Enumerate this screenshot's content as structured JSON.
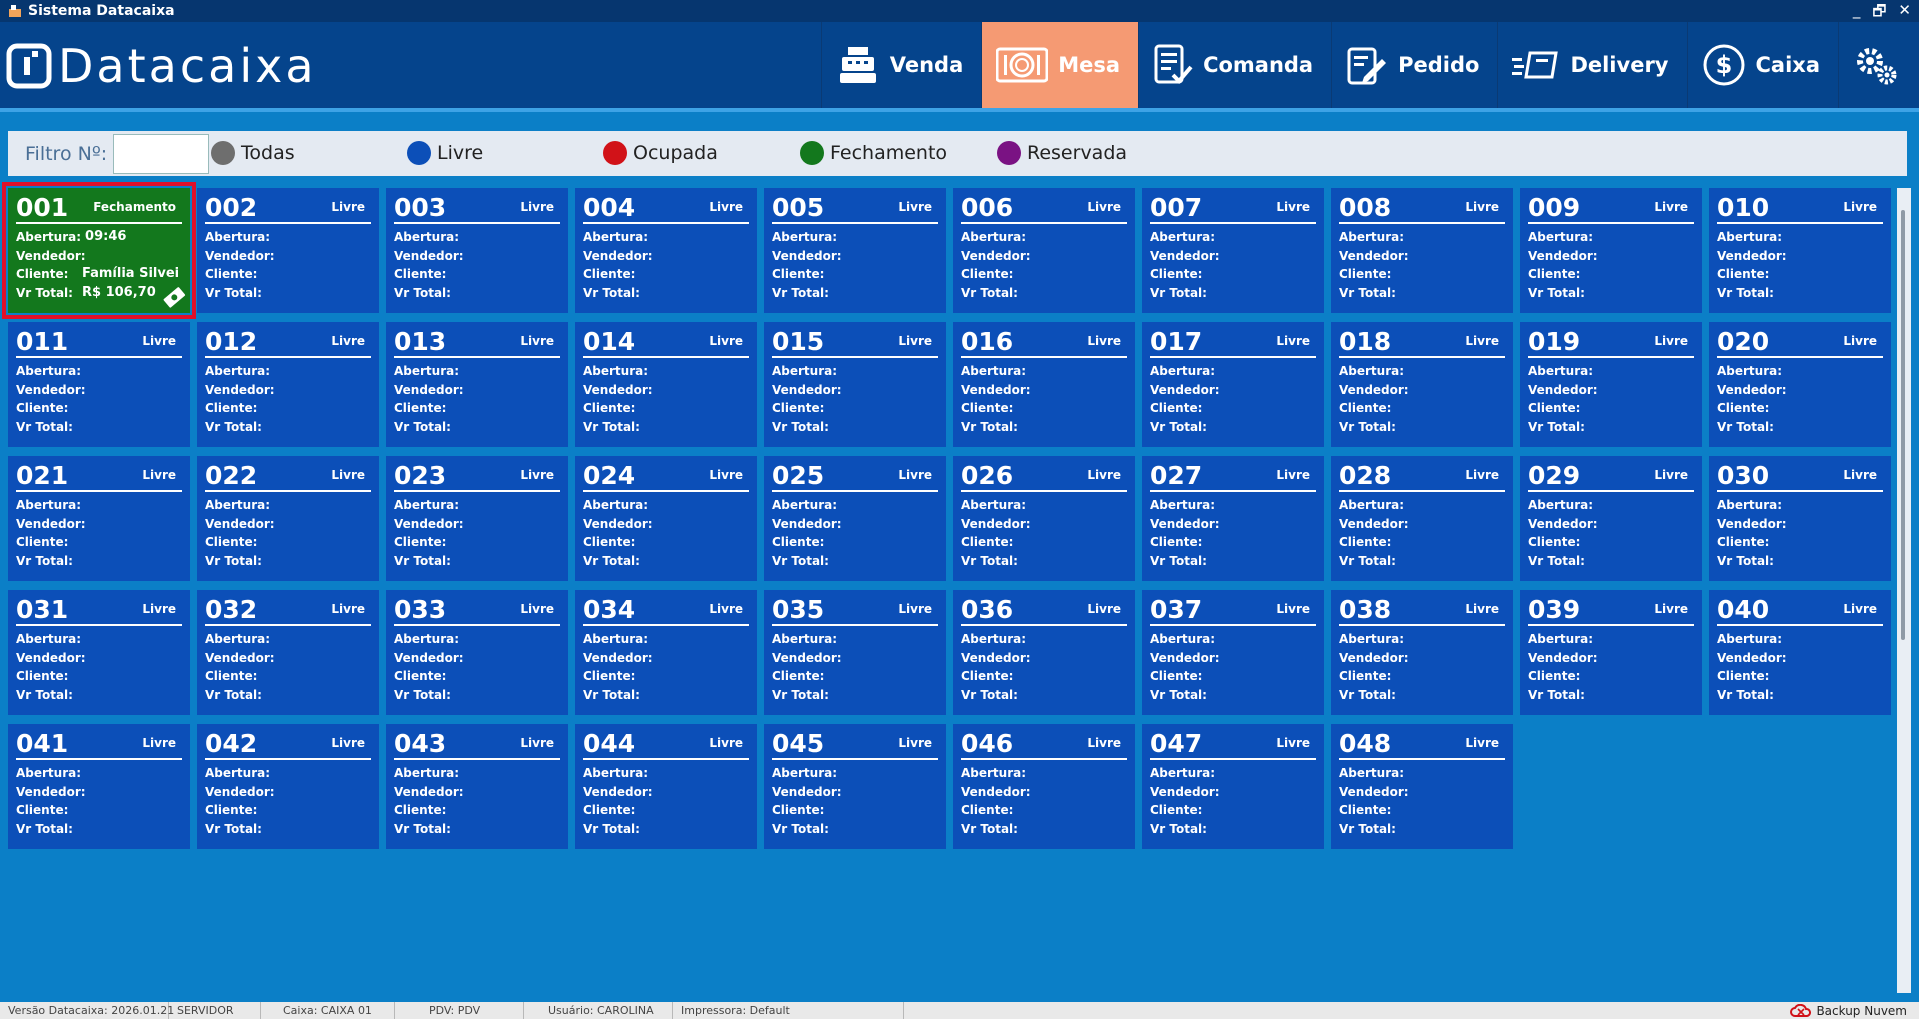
{
  "window": {
    "title": "Sistema Datacaixa",
    "controls": [
      "_",
      "🗗",
      "✕"
    ]
  },
  "brand": {
    "name": "Datacaixa"
  },
  "nav": [
    {
      "label": "Venda",
      "icon": "cash-register-icon",
      "active": false
    },
    {
      "label": "Mesa",
      "icon": "plate-icon",
      "active": true
    },
    {
      "label": "Comanda",
      "icon": "checklist-icon",
      "active": false
    },
    {
      "label": "Pedido",
      "icon": "order-edit-icon",
      "active": false
    },
    {
      "label": "Delivery",
      "icon": "delivery-icon",
      "active": false
    },
    {
      "label": "Caixa",
      "icon": "dollar-circle-icon",
      "active": false
    }
  ],
  "filter": {
    "label": "Filtro Nº:",
    "value": "",
    "legend": [
      {
        "label": "Todas",
        "color": "#6e6e6e"
      },
      {
        "label": "Livre",
        "color": "#0c4fb8"
      },
      {
        "label": "Ocupada",
        "color": "#d11218"
      },
      {
        "label": "Fechamento",
        "color": "#13781d"
      },
      {
        "label": "Reservada",
        "color": "#7a1283"
      }
    ]
  },
  "field_labels": {
    "abertura": "Abertura:",
    "vendedor": "Vendedor:",
    "cliente": "Cliente:",
    "total": "Vr Total:"
  },
  "mesas": [
    {
      "num": "001",
      "status": "Fechamento",
      "abertura": "09:46",
      "vendedor": "",
      "cliente": "Família Silveira",
      "total": "R$ 106,70"
    },
    {
      "num": "002",
      "status": "Livre"
    },
    {
      "num": "003",
      "status": "Livre"
    },
    {
      "num": "004",
      "status": "Livre"
    },
    {
      "num": "005",
      "status": "Livre"
    },
    {
      "num": "006",
      "status": "Livre"
    },
    {
      "num": "007",
      "status": "Livre"
    },
    {
      "num": "008",
      "status": "Livre"
    },
    {
      "num": "009",
      "status": "Livre"
    },
    {
      "num": "010",
      "status": "Livre"
    },
    {
      "num": "011",
      "status": "Livre"
    },
    {
      "num": "012",
      "status": "Livre"
    },
    {
      "num": "013",
      "status": "Livre"
    },
    {
      "num": "014",
      "status": "Livre"
    },
    {
      "num": "015",
      "status": "Livre"
    },
    {
      "num": "016",
      "status": "Livre"
    },
    {
      "num": "017",
      "status": "Livre"
    },
    {
      "num": "018",
      "status": "Livre"
    },
    {
      "num": "019",
      "status": "Livre"
    },
    {
      "num": "020",
      "status": "Livre"
    },
    {
      "num": "021",
      "status": "Livre"
    },
    {
      "num": "022",
      "status": "Livre"
    },
    {
      "num": "023",
      "status": "Livre"
    },
    {
      "num": "024",
      "status": "Livre"
    },
    {
      "num": "025",
      "status": "Livre"
    },
    {
      "num": "026",
      "status": "Livre"
    },
    {
      "num": "027",
      "status": "Livre"
    },
    {
      "num": "028",
      "status": "Livre"
    },
    {
      "num": "029",
      "status": "Livre"
    },
    {
      "num": "030",
      "status": "Livre"
    },
    {
      "num": "031",
      "status": "Livre"
    },
    {
      "num": "032",
      "status": "Livre"
    },
    {
      "num": "033",
      "status": "Livre"
    },
    {
      "num": "034",
      "status": "Livre"
    },
    {
      "num": "035",
      "status": "Livre"
    },
    {
      "num": "036",
      "status": "Livre"
    },
    {
      "num": "037",
      "status": "Livre"
    },
    {
      "num": "038",
      "status": "Livre"
    },
    {
      "num": "039",
      "status": "Livre"
    },
    {
      "num": "040",
      "status": "Livre"
    },
    {
      "num": "041",
      "status": "Livre"
    },
    {
      "num": "042",
      "status": "Livre"
    },
    {
      "num": "043",
      "status": "Livre"
    },
    {
      "num": "044",
      "status": "Livre"
    },
    {
      "num": "045",
      "status": "Livre"
    },
    {
      "num": "046",
      "status": "Livre"
    },
    {
      "num": "047",
      "status": "Livre"
    },
    {
      "num": "048",
      "status": "Livre"
    }
  ],
  "status": {
    "versao": "Versão Datacaixa: 2026.01.21",
    "servidor": "SERVIDOR",
    "caixa": "Caixa: CAIXA 01",
    "pdv": "PDV: PDV",
    "usuario": "Usuário: CAROLINA",
    "impressora": "Impressora: Default",
    "backup": "Backup Nuvem"
  }
}
